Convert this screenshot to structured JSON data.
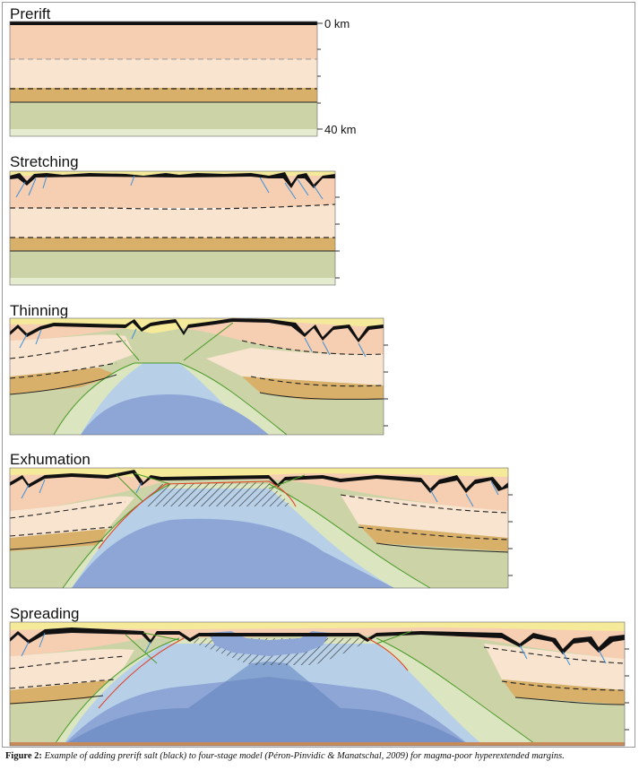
{
  "panels": [
    {
      "title": "Prerift"
    },
    {
      "title": "Stretching"
    },
    {
      "title": "Thinning"
    },
    {
      "title": "Exhumation"
    },
    {
      "title": "Spreading"
    }
  ],
  "depth_axis": {
    "top_label": "0 km",
    "bottom_label": "40 km"
  },
  "caption": {
    "label": "Figure 2:",
    "text": "Example of adding prerift salt (black) to four-stage model (Péron-Pinvidic & Manatschal, 2009) for magma-poor hyperextended margins."
  },
  "colors": {
    "sediment": "#f5e99a",
    "upper_crust": "#f6cfb2",
    "middle_crust": "#f9e4d0",
    "lower_crust": "#d9b06a",
    "lithospheric_mantle": "#ccd3a6",
    "exhumed_mantle": "#dbe6c0",
    "asthenosphere_light": "#b7d0e8",
    "asthenosphere_dark": "#8ea6d6",
    "salt": "#111111",
    "faults": "#3d8fd8",
    "detachment": "#e0442a",
    "boundary_green": "#4a9a2a"
  }
}
